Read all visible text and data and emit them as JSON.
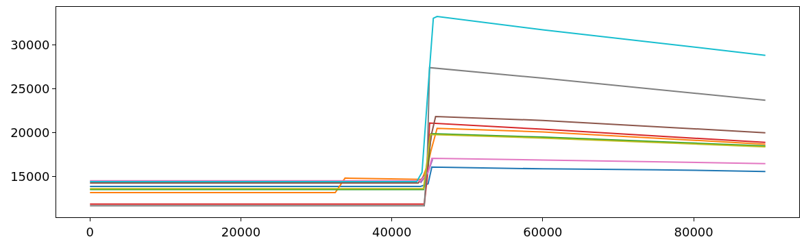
{
  "chart_data": {
    "type": "line",
    "xlim": [
      -4475,
      93975
    ],
    "xticks": [
      0,
      20000,
      40000,
      60000,
      80000
    ],
    "ylim": [
      10400,
      34300
    ],
    "yticks": [
      15000,
      20000,
      25000,
      30000
    ],
    "grid": false,
    "marker": "none",
    "line_style": "solid",
    "series": [
      {
        "color": "#1f77b4",
        "x": [
          0,
          20000,
          43800,
          44800,
          45300,
          60000,
          75000,
          89500
        ],
        "values": [
          13900,
          13900,
          13900,
          14200,
          16100,
          15900,
          15800,
          15600
        ]
      },
      {
        "color": "#ff7f0e",
        "x": [
          0,
          32500,
          33800,
          44000,
          44800,
          45200,
          46000,
          60000,
          89500
        ],
        "values": [
          13200,
          13200,
          14850,
          14700,
          16500,
          18000,
          20500,
          20100,
          18700
        ]
      },
      {
        "color": "#2ca02c",
        "x": [
          0,
          44200,
          44800,
          45200,
          60000,
          89500
        ],
        "values": [
          13550,
          13550,
          16000,
          19900,
          19500,
          18500
        ]
      },
      {
        "color": "#d62728",
        "x": [
          0,
          44300,
          44700,
          45000,
          60000,
          89500
        ],
        "values": [
          11900,
          11900,
          15000,
          21100,
          20400,
          18900
        ]
      },
      {
        "color": "#9467bd",
        "x": [
          43800,
          44800,
          45400
        ],
        "values": [
          14300,
          15500,
          17000
        ]
      },
      {
        "color": "#8c564b",
        "x": [
          0,
          43500,
          44500,
          45300,
          45800,
          60000,
          89500
        ],
        "values": [
          14300,
          14300,
          15300,
          20000,
          21850,
          21400,
          20000
        ]
      },
      {
        "color": "#e377c2",
        "x": [
          0,
          43800,
          44800,
          45300,
          60000,
          89500
        ],
        "values": [
          14550,
          14550,
          15500,
          17100,
          16900,
          16500
        ]
      },
      {
        "color": "#7f7f7f",
        "x": [
          0,
          44300,
          44700,
          45000,
          60000,
          89500
        ],
        "values": [
          11700,
          11700,
          17000,
          27400,
          26200,
          23700
        ]
      },
      {
        "color": "#bcbd22",
        "x": [
          0,
          44200,
          44700,
          45100,
          60000,
          89500
        ],
        "values": [
          13650,
          13650,
          17000,
          19800,
          19400,
          18400
        ]
      },
      {
        "color": "#17becf",
        "x": [
          0,
          43300,
          44000,
          44800,
          45500,
          46000,
          60000,
          89500
        ],
        "values": [
          14450,
          14450,
          15500,
          25000,
          33000,
          33200,
          31700,
          28800
        ]
      }
    ]
  }
}
